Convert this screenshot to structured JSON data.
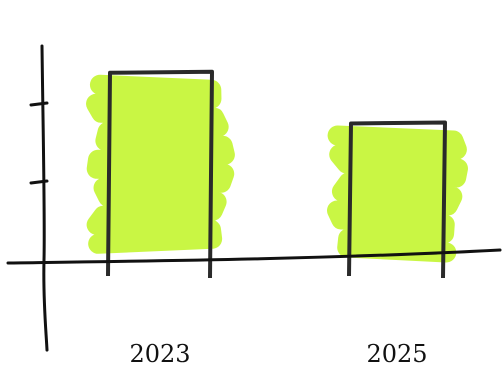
{
  "chart_data": {
    "type": "bar",
    "categories": [
      "2023",
      "2025"
    ],
    "values": [
      2.4,
      1.75
    ],
    "ylim": [
      -1,
      3
    ],
    "yticks": [
      1,
      2
    ],
    "grid": false,
    "style": "hand-drawn",
    "colors": {
      "fill": "#c6f53a",
      "outline": "#2a2a2a",
      "axis": "#111111"
    }
  }
}
